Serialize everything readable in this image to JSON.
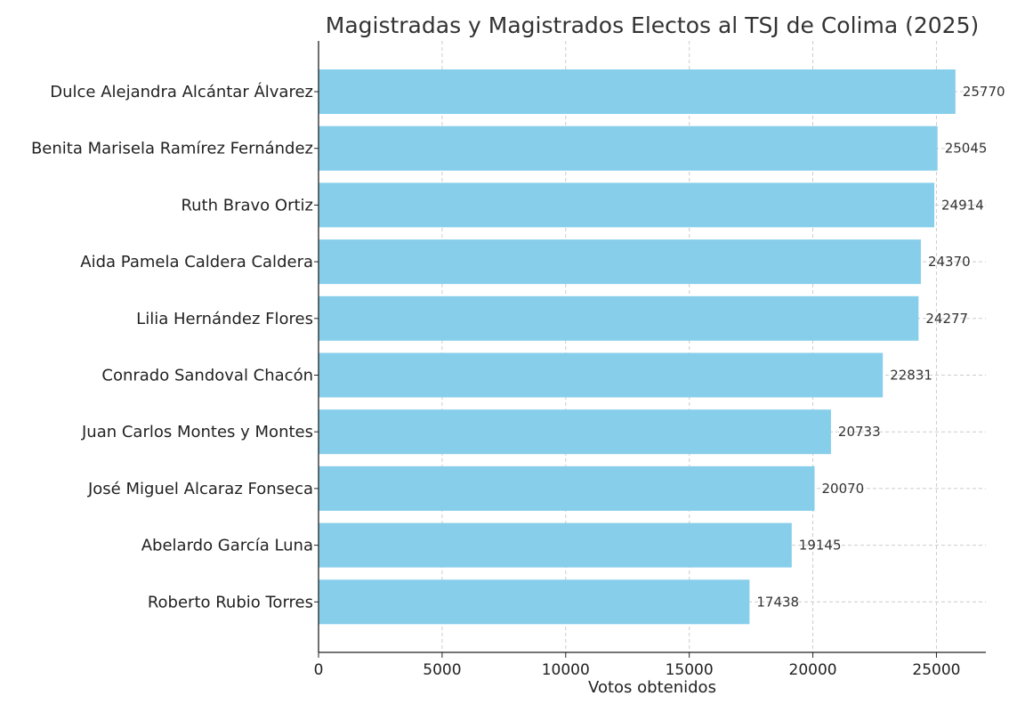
{
  "chart_data": {
    "type": "bar",
    "orientation": "horizontal",
    "title": "Magistradas y Magistrados Electos al TSJ de Colima (2025)",
    "xlabel": "Votos obtenidos",
    "ylabel": "",
    "xlim": [
      0,
      27000
    ],
    "xticks": [
      0,
      5000,
      10000,
      15000,
      20000,
      25000
    ],
    "grid": true,
    "bar_color": "#87ceeb",
    "categories": [
      "Dulce Alejandra Alcántar Álvarez",
      "Benita Marisela Ramírez Fernández",
      "Ruth Bravo Ortiz",
      "Aida Pamela Caldera Caldera",
      "Lilia Hernández Flores",
      "Conrado Sandoval Chacón",
      "Juan Carlos Montes y Montes",
      "José Miguel Alcaraz Fonseca",
      "Abelardo García Luna",
      "Roberto Rubio Torres"
    ],
    "values": [
      25770,
      25045,
      24914,
      24370,
      24277,
      22831,
      20733,
      20070,
      19145,
      17438
    ],
    "value_labels": [
      "25770",
      "25045",
      "24914",
      "24370",
      "24277",
      "22831",
      "20733",
      "20070",
      "19145",
      "17438"
    ]
  }
}
